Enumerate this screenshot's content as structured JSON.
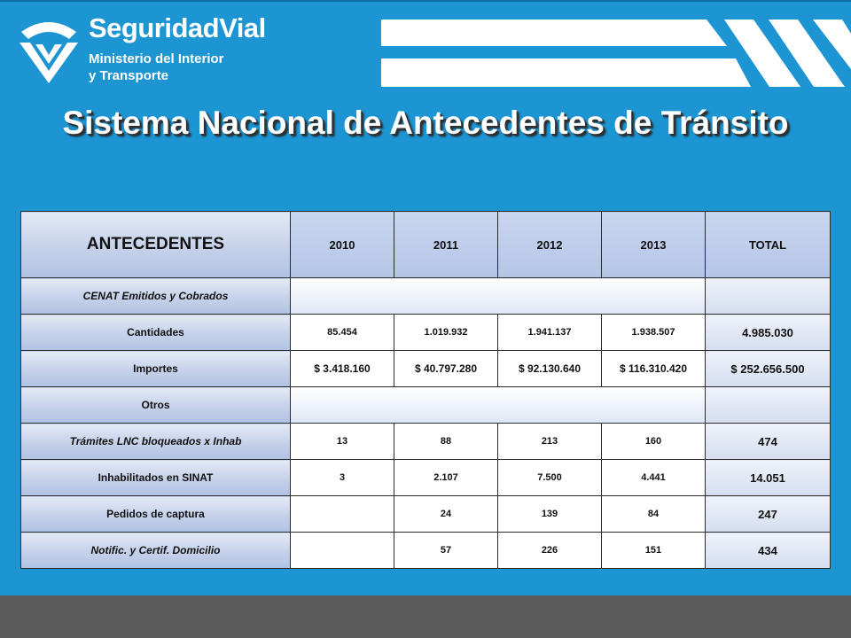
{
  "brand": {
    "name_part1": "Seguridad",
    "name_part2": "Vial",
    "line1": "Ministerio del Interior",
    "line2": "y Transporte"
  },
  "title": "Sistema Nacional de Antecedentes de Tránsito",
  "table": {
    "header": {
      "label": "ANTECEDENTES",
      "years": [
        "2010",
        "2011",
        "2012",
        "2013"
      ],
      "total": "TOTAL"
    },
    "sections": [
      {
        "label": "CENAT Emitidos y Cobrados"
      },
      {
        "label": "Otros"
      }
    ],
    "rows": [
      {
        "label": "Cantidades",
        "values": [
          "85.454",
          "1.019.932",
          "1.941.137",
          "1.938.507"
        ],
        "total": "4.985.030"
      },
      {
        "label": "Importes",
        "values": [
          "$ 3.418.160",
          "$ 40.797.280",
          "$ 92.130.640",
          "$ 116.310.420"
        ],
        "total": "$ 252.656.500"
      },
      {
        "label": "Trámites LNC bloqueados x Inhab",
        "values": [
          "13",
          "88",
          "213",
          "160"
        ],
        "total": "474"
      },
      {
        "label": "Inhabilitados en SINAT",
        "values": [
          "3",
          "2.107",
          "7.500",
          "4.441"
        ],
        "total": "14.051"
      },
      {
        "label": "Pedidos de captura",
        "values": [
          "",
          "24",
          "139",
          "84"
        ],
        "total": "247"
      },
      {
        "label": "Notific. y Certif. Domicilio",
        "values": [
          "",
          "57",
          "226",
          "151"
        ],
        "total": "434"
      }
    ]
  },
  "colors": {
    "background": "#1d95d3",
    "footer": "#5b5b5b",
    "header_fill": "#b4c5e6"
  },
  "icons": {
    "logo": "seguridad-vial-logo-icon",
    "stripes": "decorative-stripes-icon"
  }
}
